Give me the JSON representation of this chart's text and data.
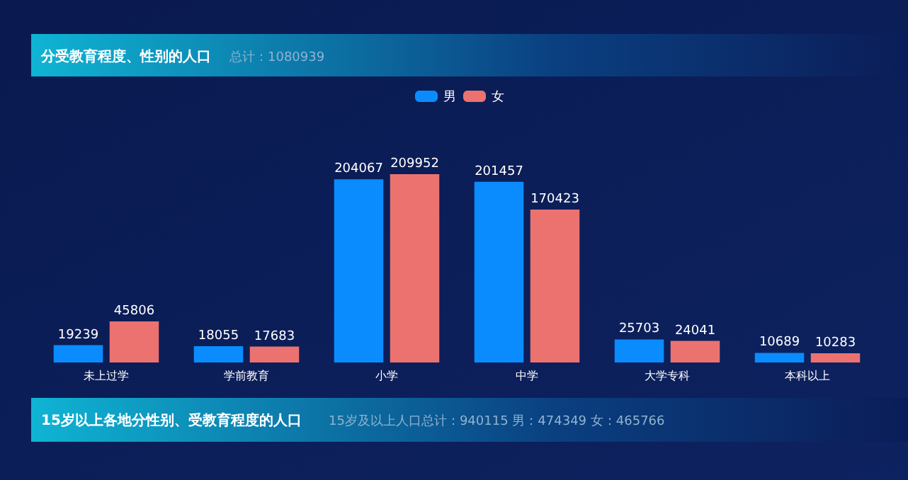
{
  "chart_data": {
    "type": "bar",
    "title": "分受教育程度、性别的人口",
    "subtitle": "总计：1080939",
    "categories": [
      "未上过学",
      "学前教育",
      "小学",
      "中学",
      "大学专科",
      "本科以上"
    ],
    "series": [
      {
        "name": "男",
        "color": "#0a8cff",
        "values": [
          19239,
          18055,
          204067,
          201457,
          25703,
          10689
        ]
      },
      {
        "name": "女",
        "color": "#ec7270",
        "values": [
          45806,
          17683,
          209952,
          170423,
          24041,
          10283
        ]
      }
    ],
    "data_labels": true,
    "legend": "top",
    "annotations": [
      "15岁以上各地分性别、受教育程度的人口",
      "15岁及以上人口总计：940115  男：474349  女：465766"
    ]
  }
}
